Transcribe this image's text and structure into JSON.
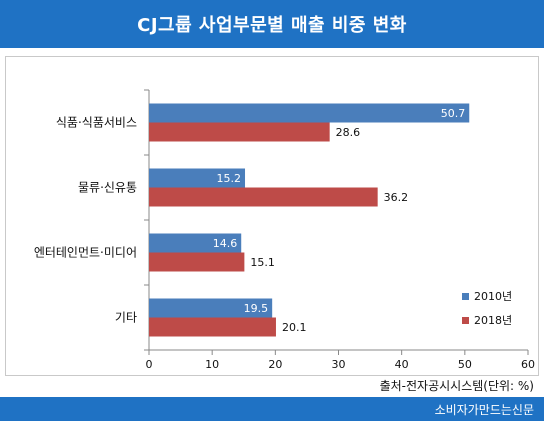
{
  "title": "CJ그룹 사업부문별 매출 비중 변화",
  "source": "출처-전자공시시스템(단위: %)",
  "publisher": "소비자가만드는신문",
  "colors": {
    "accent": "#1f72c4",
    "series_2010": "#4a7ebb",
    "series_2018": "#be4b48"
  },
  "chart_data": {
    "type": "bar",
    "orientation": "horizontal",
    "categories": [
      "식품·식품서비스",
      "물류·신유통",
      "엔터테인먼트·미디어",
      "기타"
    ],
    "series": [
      {
        "name": "2010년",
        "values": [
          50.7,
          15.2,
          14.6,
          19.5
        ]
      },
      {
        "name": "2018년",
        "values": [
          28.6,
          36.2,
          15.1,
          20.1
        ]
      }
    ],
    "xlim": [
      0,
      60
    ],
    "xticks": [
      "0",
      "10",
      "20",
      "30",
      "40",
      "50",
      "60"
    ],
    "grid": false,
    "legend_position": "right"
  }
}
